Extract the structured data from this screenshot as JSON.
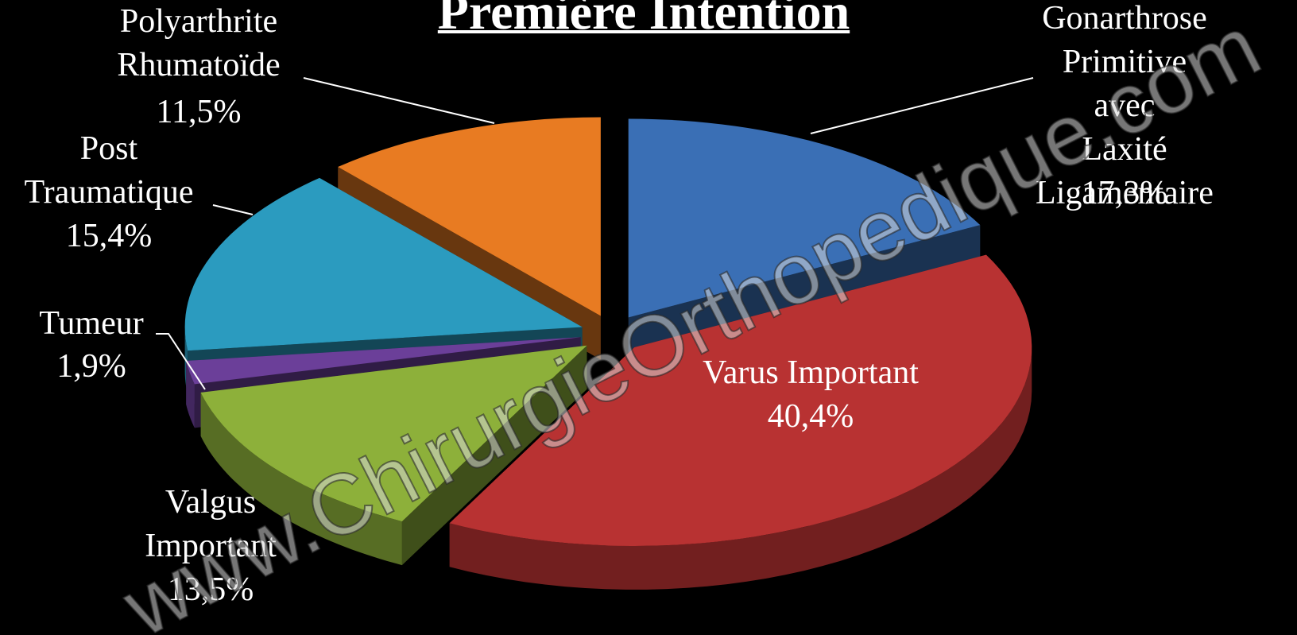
{
  "chart_data": {
    "type": "pie",
    "title": "Première Intention",
    "watermark": "www.ChirurgieOrthopedique.com",
    "categories": [
      "Gonarthrose\nPrimitive avec\nLaxité\nLigamentaire",
      "Varus Important",
      "Valgus\nImportant",
      "Tumeur",
      "Post\nTraumatique",
      "Polyarthrite\nRhumatoïde"
    ],
    "values": [
      17.3,
      40.4,
      13.5,
      1.9,
      15.4,
      11.5
    ],
    "value_labels": [
      "17,3%",
      "40,4%",
      "13,5%",
      "1,9%",
      "15,4%",
      "11,5%"
    ],
    "colors": [
      "#3a6fb5",
      "#b83232",
      "#8db03a",
      "#6b3f99",
      "#2b9bbf",
      "#e87b22"
    ]
  }
}
